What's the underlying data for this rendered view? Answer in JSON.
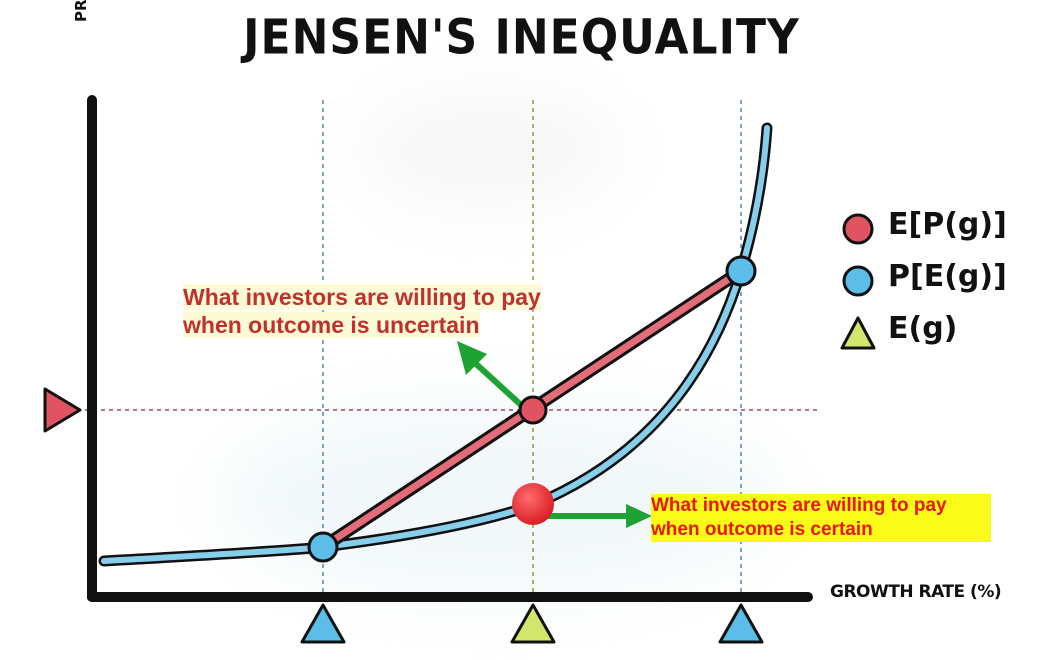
{
  "colors": {
    "curve": "#87ceeb",
    "chord": "#e46b78",
    "red_marker": "#e05360",
    "blue_marker": "#5bbde8",
    "yellow_marker": "#d2e66b",
    "arrow": "#1ea233",
    "axis": "#111111"
  },
  "chart_data": {
    "type": "line",
    "title": "JENSEN'S INEQUALITY",
    "xlabel": "GROWTH RATE (%)",
    "ylabel": "PRICE",
    "grid": false,
    "legend": {
      "placement": "right",
      "entries": [
        {
          "label": "E[P(g)]",
          "marker": "circle",
          "color": "#e05360"
        },
        {
          "label": "P[E(g)]",
          "marker": "circle",
          "color": "#5bbde8"
        },
        {
          "label": "E(g)",
          "marker": "triangle",
          "color": "#d2e66b"
        }
      ]
    },
    "annotations": [
      {
        "text_lines": [
          "What investors are willing to pay",
          "when outcome is uncertain"
        ],
        "color": "#c0302e"
      },
      {
        "text_lines": [
          "What investors are willing to pay",
          "when outcome is certain"
        ],
        "color": "#e8180f",
        "background": "#fbfb18"
      }
    ]
  }
}
